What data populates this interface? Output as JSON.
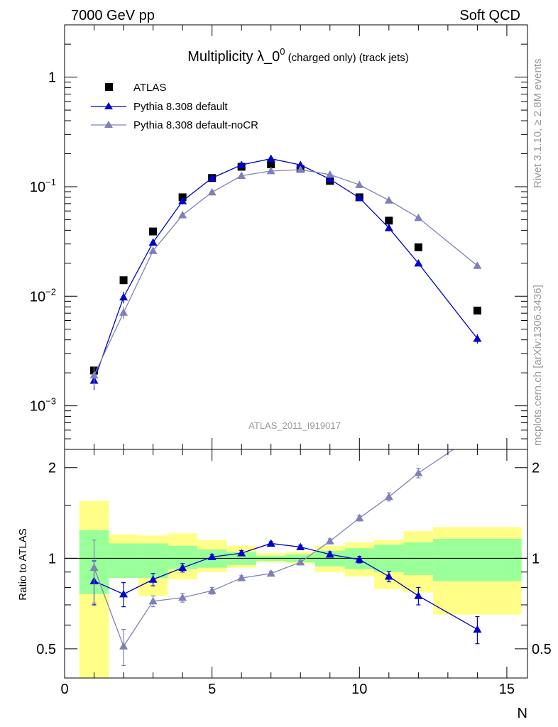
{
  "header": {
    "left": "7000 GeV pp",
    "right": "Soft QCD"
  },
  "side_labels": {
    "rivet": "Rivet 3.1.10, ≥ 2.8M events",
    "mcplots": "mcplots.cern.ch [arXiv:1306.3436]"
  },
  "chart_data": {
    "type": "scatter",
    "title": {
      "main": "Multiplicity λ_0",
      "sup": "0",
      "suffix": " (charged only) (track jets)"
    },
    "analysis_id": "ATLAS_2011_I919017",
    "xlabel": "N",
    "ylabel_ratio": "Ratio to ATLAS",
    "xlim": [
      0,
      15.7
    ],
    "ylim_main": [
      0.0004,
      3
    ],
    "ylim_ratio": [
      0.4,
      2.3
    ],
    "y_scale_main": "log",
    "y_scale_ratio": "log",
    "legend_position": "top-left",
    "x_ticks": [
      0,
      5,
      10,
      15
    ],
    "x_tick_labels": [
      "0",
      "5",
      "10",
      "15"
    ],
    "main_y_ticks": [
      {
        "value": 1,
        "base": "1",
        "exp": ""
      },
      {
        "value": 0.1,
        "base": "10",
        "exp": "−1"
      },
      {
        "value": 0.01,
        "base": "10",
        "exp": "−2"
      },
      {
        "value": 0.001,
        "base": "10",
        "exp": "−3"
      }
    ],
    "ratio_y_ticks": [
      {
        "value": 2,
        "label": "2"
      },
      {
        "value": 1,
        "label": "1"
      },
      {
        "value": 0.5,
        "label": "0.5"
      }
    ],
    "x": [
      1,
      2,
      3,
      4,
      5,
      6,
      7,
      8,
      9,
      10,
      11,
      12,
      14
    ],
    "series": [
      {
        "name": "ATLAS",
        "marker": "square",
        "color": "#000000",
        "values": [
          0.0021,
          0.014,
          0.039,
          0.08,
          0.12,
          0.152,
          0.16,
          0.145,
          0.113,
          0.08,
          0.049,
          0.028,
          0.0074
        ]
      },
      {
        "name": "Pythia 8.308 default",
        "marker": "triangle",
        "color": "#0000cc",
        "values": [
          0.0017,
          0.0098,
          0.031,
          0.074,
          0.12,
          0.158,
          0.18,
          0.158,
          0.117,
          0.079,
          0.042,
          0.02,
          0.0041
        ],
        "errors_low": [
          0.0003,
          0.0012,
          0.0,
          0.0,
          0.0,
          0.0,
          0.0,
          0.0,
          0.0,
          0.0,
          0.0,
          0.0,
          0.0004
        ],
        "errors_high": [
          0.0003,
          0.0012,
          0.0,
          0.0,
          0.0,
          0.0,
          0.0,
          0.0,
          0.0,
          0.0,
          0.0,
          0.0,
          0.0004
        ],
        "ratio": [
          0.84,
          0.76,
          0.85,
          0.93,
          1.01,
          1.04,
          1.12,
          1.09,
          1.03,
          0.99,
          0.87,
          0.75,
          0.58
        ],
        "ratio_err": [
          0.14,
          0.07,
          0.04,
          0.03,
          0.02,
          0.02,
          0.015,
          0.015,
          0.02,
          0.025,
          0.035,
          0.05,
          0.06
        ]
      },
      {
        "name": "Pythia 8.308 default-noCR",
        "marker": "triangle",
        "color": "#8080b8",
        "values": [
          0.0019,
          0.0071,
          0.026,
          0.055,
          0.089,
          0.126,
          0.139,
          0.143,
          0.129,
          0.104,
          0.075,
          0.052,
          0.019
        ],
        "errors_low": [
          0.0004,
          0.0009,
          0.0,
          0.0,
          0.0,
          0.0,
          0.0,
          0.0,
          0.0,
          0.0,
          0.0,
          0.0,
          0.0
        ],
        "errors_high": [
          0.0004,
          0.0009,
          0.0,
          0.0,
          0.0,
          0.0,
          0.0,
          0.0,
          0.0,
          0.0,
          0.0,
          0.0,
          0.0
        ],
        "ratio": [
          0.93,
          0.51,
          0.72,
          0.74,
          0.78,
          0.86,
          0.89,
          0.97,
          1.14,
          1.36,
          1.6,
          1.92,
          2.6
        ],
        "ratio_err": [
          0.22,
          0.07,
          0.03,
          0.025,
          0.02,
          0.015,
          0.015,
          0.015,
          0.02,
          0.03,
          0.05,
          0.07,
          0.0
        ]
      }
    ],
    "uncertainty_bands": {
      "colors": {
        "stat": "#99ff99",
        "total": "#ffff88"
      },
      "bins": [
        {
          "lo": 0.5,
          "hi": 1.5,
          "stat": [
            0.76,
            1.24
          ],
          "total": [
            0.38,
            1.55
          ]
        },
        {
          "lo": 1.5,
          "hi": 2.5,
          "stat": [
            0.86,
            1.12
          ],
          "total": [
            0.86,
            1.2
          ]
        },
        {
          "lo": 2.5,
          "hi": 3.5,
          "stat": [
            0.86,
            1.12
          ],
          "total": [
            0.75,
            1.19
          ]
        },
        {
          "lo": 3.5,
          "hi": 4.5,
          "stat": [
            0.92,
            1.1
          ],
          "total": [
            0.85,
            1.21
          ]
        },
        {
          "lo": 4.5,
          "hi": 5.5,
          "stat": [
            0.93,
            1.07
          ],
          "total": [
            0.9,
            1.15
          ]
        },
        {
          "lo": 5.5,
          "hi": 6.5,
          "stat": [
            0.95,
            1.05
          ],
          "total": [
            0.93,
            1.1
          ]
        },
        {
          "lo": 6.5,
          "hi": 7.5,
          "stat": [
            0.98,
            1.02
          ],
          "total": [
            0.97,
            1.04
          ]
        },
        {
          "lo": 7.5,
          "hi": 8.5,
          "stat": [
            0.97,
            1.03
          ],
          "total": [
            0.96,
            1.05
          ]
        },
        {
          "lo": 8.5,
          "hi": 9.5,
          "stat": [
            0.94,
            1.06
          ],
          "total": [
            0.9,
            1.1
          ]
        },
        {
          "lo": 9.5,
          "hi": 10.5,
          "stat": [
            0.92,
            1.08
          ],
          "total": [
            0.87,
            1.13
          ]
        },
        {
          "lo": 10.5,
          "hi": 11.5,
          "stat": [
            0.9,
            1.11
          ],
          "total": [
            0.79,
            1.15
          ]
        },
        {
          "lo": 11.5,
          "hi": 12.5,
          "stat": [
            0.88,
            1.13
          ],
          "total": [
            0.77,
            1.23
          ]
        },
        {
          "lo": 12.5,
          "hi": 15.5,
          "stat": [
            0.84,
            1.16
          ],
          "total": [
            0.65,
            1.27
          ]
        }
      ]
    }
  }
}
